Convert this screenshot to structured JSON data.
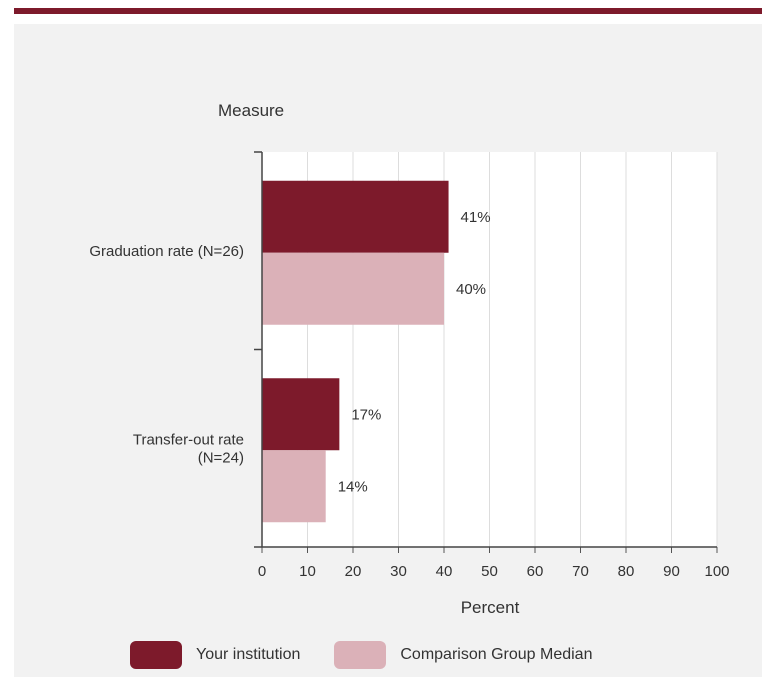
{
  "chart_data": {
    "type": "bar",
    "orientation": "horizontal",
    "title": "Measure",
    "xlabel": "Percent",
    "xlim": [
      0,
      100
    ],
    "x_ticks": [
      "0",
      "10",
      "20",
      "30",
      "40",
      "50",
      "60",
      "70",
      "80",
      "90",
      "100"
    ],
    "grid": true,
    "legend_position": "bottom",
    "categories": [
      {
        "line1": "Graduation rate (N=26)",
        "line2": ""
      },
      {
        "line1": "Transfer-out rate",
        "line2": "(N=24)"
      }
    ],
    "series": [
      {
        "name": "Your institution",
        "color": "#7d1a2b",
        "values": [
          41,
          17
        ],
        "labels": [
          "41%",
          "17%"
        ]
      },
      {
        "name": "Comparison Group Median",
        "color": "#dbb1b8",
        "values": [
          40,
          14
        ],
        "labels": [
          "40%",
          "14%"
        ]
      }
    ]
  },
  "colors": {
    "accent": "#7d1a2b",
    "panel_background": "#f2f2f2",
    "plot_background": "#ffffff"
  }
}
